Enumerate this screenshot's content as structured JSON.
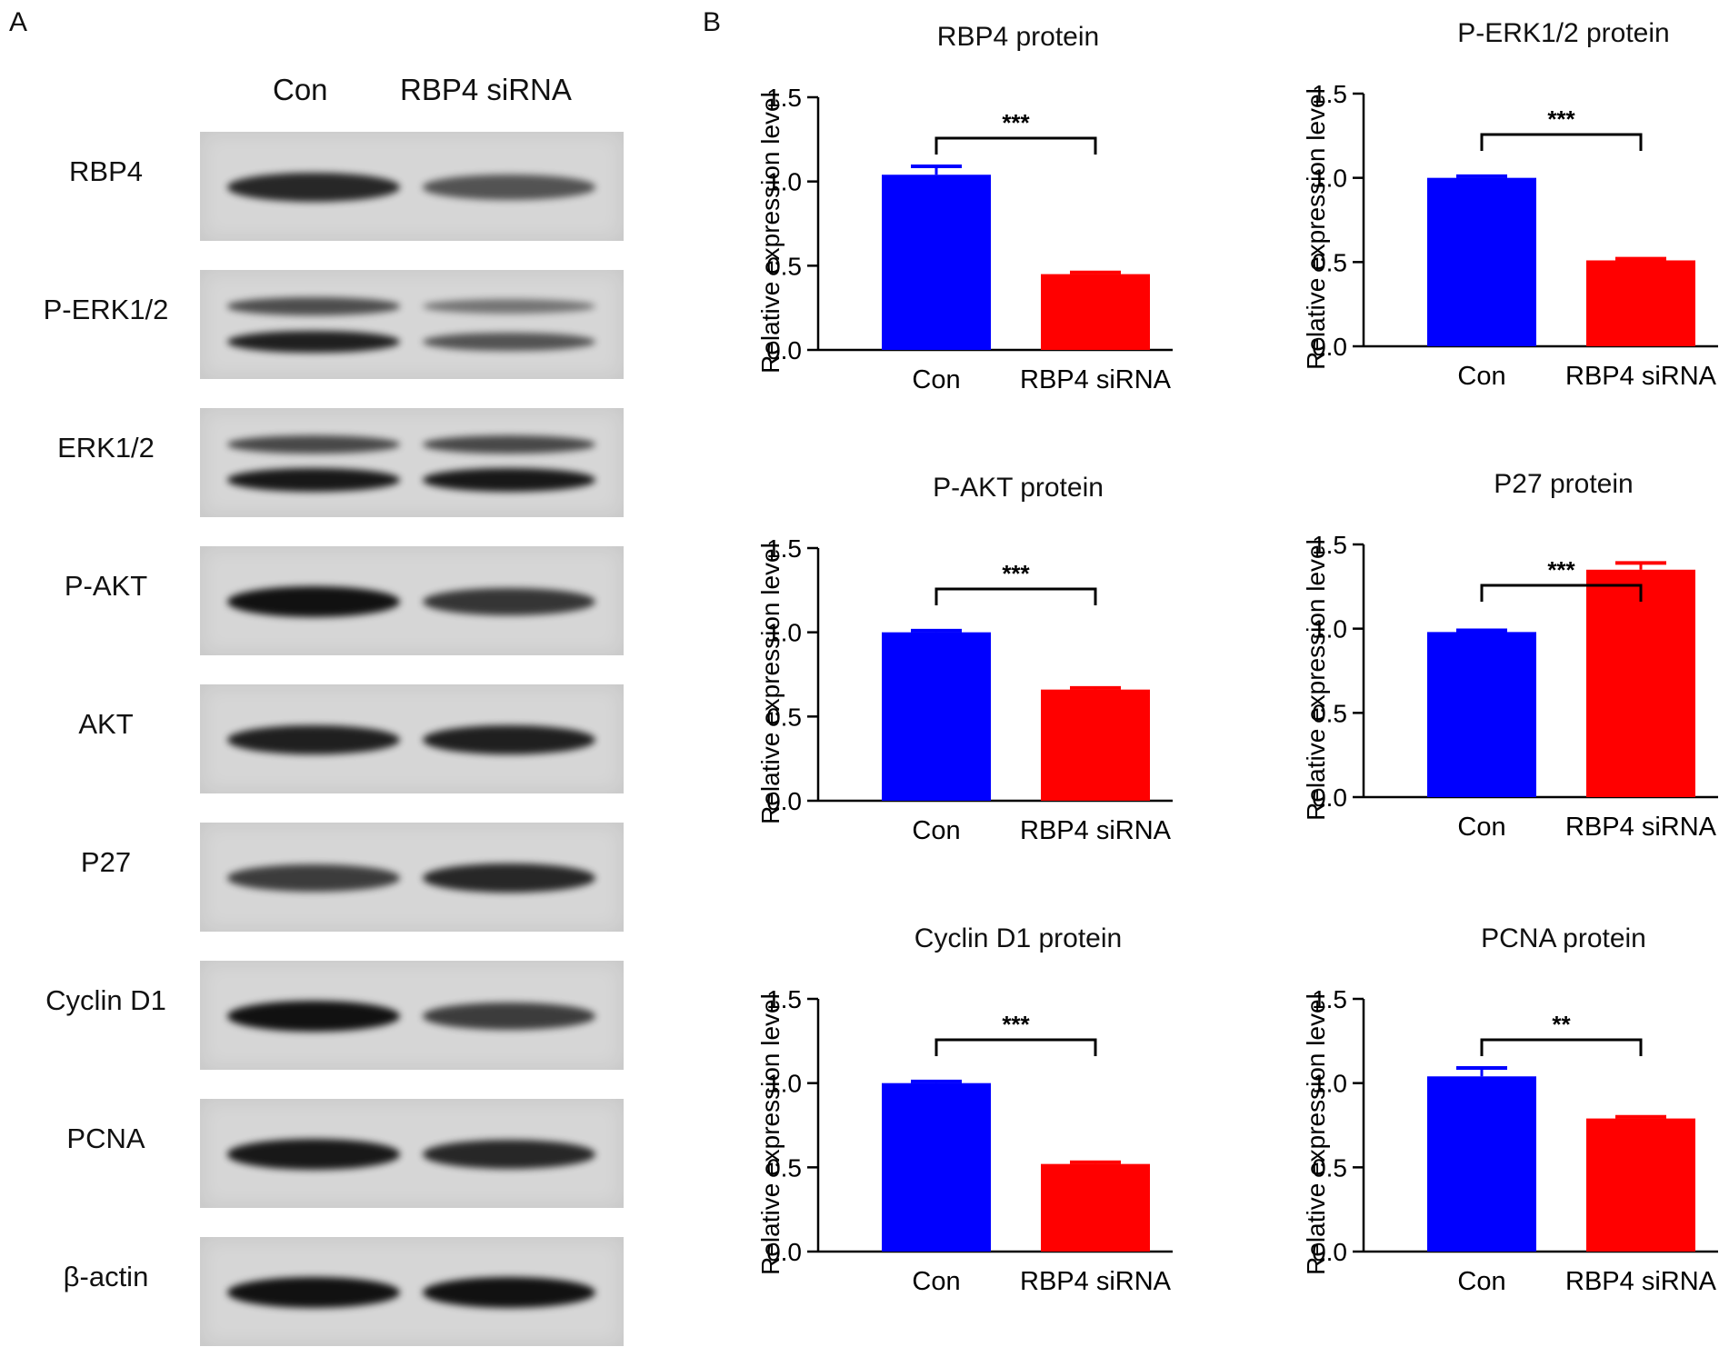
{
  "panel_letters": {
    "a": "A",
    "b": "B"
  },
  "blot": {
    "headers": [
      "Con",
      "RBP4 siRNA"
    ],
    "rows": [
      {
        "label": "RBP4",
        "con": 0.85,
        "sirna": 0.55,
        "double": false
      },
      {
        "label": "P-ERK1/2",
        "con": 0.9,
        "sirna": 0.55,
        "double": true
      },
      {
        "label": "ERK1/2",
        "con": 0.95,
        "sirna": 0.95,
        "double": true
      },
      {
        "label": "P-AKT",
        "con": 1.0,
        "sirna": 0.75,
        "double": false
      },
      {
        "label": "AKT",
        "con": 0.9,
        "sirna": 0.9,
        "double": false
      },
      {
        "label": "P27",
        "con": 0.7,
        "sirna": 0.85,
        "double": false
      },
      {
        "label": "Cyclin D1",
        "con": 1.0,
        "sirna": 0.7,
        "double": false
      },
      {
        "label": "PCNA",
        "con": 0.95,
        "sirna": 0.85,
        "double": false
      },
      {
        "label": "β-actin",
        "con": 1.0,
        "sirna": 1.0,
        "double": false
      }
    ]
  },
  "colors": {
    "con": "#0000ff",
    "sirna": "#ff0000",
    "axis": "#000000"
  },
  "chart_data": [
    {
      "type": "bar",
      "title": "RBP4 protein",
      "ylabel": "Relative expression level",
      "categories": [
        "Con",
        "RBP4 siRNA"
      ],
      "values": [
        1.04,
        0.45
      ],
      "errors": [
        0.05,
        0.01
      ],
      "ylim": [
        0,
        1.5
      ],
      "yticks": [
        "0.0",
        "0.5",
        "1.0",
        "1.5"
      ],
      "significance": "***"
    },
    {
      "type": "bar",
      "title": "P-ERK1/2 protein",
      "ylabel": "Relative expression level",
      "categories": [
        "Con",
        "RBP4 siRNA"
      ],
      "values": [
        1.0,
        0.51
      ],
      "errors": [
        0.01,
        0.01
      ],
      "ylim": [
        0,
        1.5
      ],
      "yticks": [
        "0.0",
        "0.5",
        "1.0",
        "1.5"
      ],
      "significance": "***"
    },
    {
      "type": "bar",
      "title": "P-AKT protein",
      "ylabel": "Relative expression level",
      "categories": [
        "Con",
        "RBP4 siRNA"
      ],
      "values": [
        1.0,
        0.66
      ],
      "errors": [
        0.01,
        0.01
      ],
      "ylim": [
        0,
        1.5
      ],
      "yticks": [
        "0.0",
        "0.5",
        "1.0",
        "1.5"
      ],
      "significance": "***"
    },
    {
      "type": "bar",
      "title": "P27 protein",
      "ylabel": "Relative expression level",
      "categories": [
        "Con",
        "RBP4 siRNA"
      ],
      "values": [
        0.98,
        1.35
      ],
      "errors": [
        0.01,
        0.04
      ],
      "ylim": [
        0,
        1.5
      ],
      "yticks": [
        "0.0",
        "0.5",
        "1.0",
        "1.5"
      ],
      "significance": "***"
    },
    {
      "type": "bar",
      "title": "Cyclin D1 protein",
      "ylabel": "Relative expression level",
      "categories": [
        "Con",
        "RBP4 siRNA"
      ],
      "values": [
        1.0,
        0.52
      ],
      "errors": [
        0.01,
        0.01
      ],
      "ylim": [
        0,
        1.5
      ],
      "yticks": [
        "0.0",
        "0.5",
        "1.0",
        "1.5"
      ],
      "significance": "***"
    },
    {
      "type": "bar",
      "title": "PCNA protein",
      "ylabel": "Relative expression level",
      "categories": [
        "Con",
        "RBP4 siRNA"
      ],
      "values": [
        1.04,
        0.79
      ],
      "errors": [
        0.05,
        0.01
      ],
      "ylim": [
        0,
        1.5
      ],
      "yticks": [
        "0.0",
        "0.5",
        "1.0",
        "1.5"
      ],
      "significance": "**"
    }
  ]
}
